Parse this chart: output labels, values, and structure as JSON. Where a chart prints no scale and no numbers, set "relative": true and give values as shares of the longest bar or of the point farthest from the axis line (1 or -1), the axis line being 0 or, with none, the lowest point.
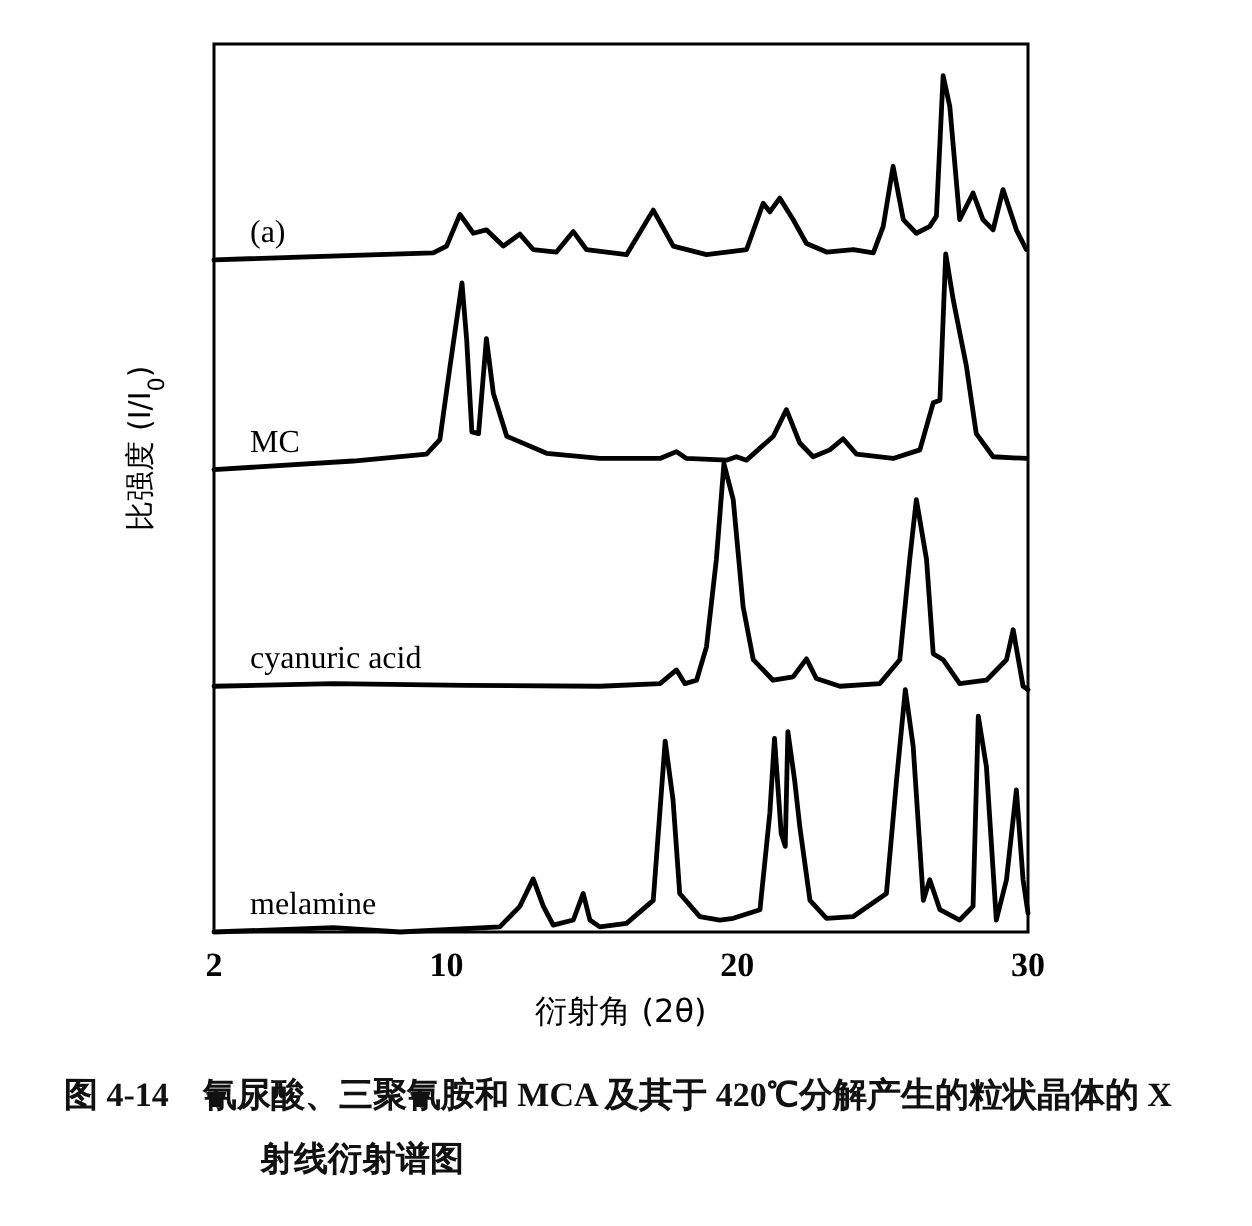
{
  "chart_data": {
    "type": "line",
    "relative": true,
    "xlabel": "衍射角 (2θ)",
    "ylabel": "比强度 (I/I$_{0}$)",
    "xlim": [
      2,
      30
    ],
    "xticks": [
      2,
      10,
      20,
      30
    ],
    "annotations": [
      "图 4-14　氰尿酸、三聚氰胺和 MCA 及其于 420℃分解产生的粒状晶体的 X 射线衍射谱图"
    ],
    "series": [
      {
        "name": "(a)",
        "color": "#000000",
        "x": [
          2,
          9.54,
          10.0,
          10.46,
          10.92,
          11.37,
          11.95,
          12.52,
          12.98,
          13.78,
          14.36,
          14.81,
          16.19,
          17.11,
          17.8,
          18.94,
          20.32,
          20.89,
          21.12,
          21.46,
          21.92,
          22.38,
          23.07,
          23.99,
          24.68,
          25.02,
          25.36,
          25.71,
          26.16,
          26.62,
          26.85,
          27.08,
          27.31,
          27.65,
          28.11,
          28.45,
          28.8,
          29.14,
          29.6,
          29.94
        ],
        "values": [
          0.785,
          0.793,
          0.801,
          0.838,
          0.816,
          0.82,
          0.801,
          0.815,
          0.797,
          0.794,
          0.818,
          0.797,
          0.791,
          0.843,
          0.801,
          0.791,
          0.797,
          0.851,
          0.841,
          0.857,
          0.832,
          0.804,
          0.794,
          0.797,
          0.793,
          0.824,
          0.894,
          0.832,
          0.816,
          0.824,
          0.836,
          1,
          0.964,
          0.832,
          0.863,
          0.832,
          0.82,
          0.867,
          0.82,
          0.797
        ]
      },
      {
        "name": "MC",
        "color": "#000000",
        "x": [
          2,
          6.79,
          9.31,
          9.77,
          10.12,
          10.53,
          10.69,
          10.87,
          11.1,
          11.37,
          11.61,
          12.07,
          13.44,
          15.27,
          17.34,
          17.91,
          18.25,
          19.63,
          19.97,
          20.32,
          21.24,
          21.69,
          22.15,
          22.61,
          23.18,
          23.64,
          24.1,
          25.36,
          26.28,
          26.74,
          26.97,
          27.17,
          27.43,
          27.88,
          28.22,
          28.8,
          29.94
        ],
        "values": [
          0.54,
          0.55,
          0.558,
          0.575,
          0.661,
          0.758,
          0.692,
          0.584,
          0.582,
          0.693,
          0.629,
          0.579,
          0.559,
          0.553,
          0.553,
          0.561,
          0.553,
          0.551,
          0.555,
          0.551,
          0.579,
          0.61,
          0.571,
          0.555,
          0.563,
          0.576,
          0.558,
          0.553,
          0.563,
          0.618,
          0.621,
          0.792,
          0.738,
          0.661,
          0.582,
          0.555,
          0.553
        ]
      },
      {
        "name": "cyanuric acid",
        "color": "#000000",
        "x": [
          2,
          6.11,
          10.69,
          15.27,
          17.34,
          17.91,
          18.2,
          18.6,
          18.94,
          19.28,
          19.54,
          19.86,
          20.2,
          20.55,
          21.23,
          21.92,
          22.38,
          22.72,
          23.53,
          24.9,
          25.59,
          25.93,
          26.16,
          26.51,
          26.74,
          27.08,
          27.65,
          28.57,
          29.26,
          29.49,
          29.83,
          30
        ],
        "values": [
          0.287,
          0.29,
          0.288,
          0.287,
          0.29,
          0.306,
          0.29,
          0.294,
          0.333,
          0.435,
          0.547,
          0.505,
          0.38,
          0.318,
          0.294,
          0.298,
          0.319,
          0.296,
          0.287,
          0.29,
          0.318,
          0.435,
          0.505,
          0.435,
          0.325,
          0.318,
          0.29,
          0.294,
          0.318,
          0.353,
          0.287,
          0.283
        ]
      },
      {
        "name": "melamine",
        "color": "#000000",
        "x": [
          2,
          6.11,
          8.4,
          11.83,
          12.52,
          12.98,
          13.33,
          13.67,
          14.36,
          14.7,
          14.93,
          15.27,
          16.19,
          17.11,
          17.52,
          17.79,
          18.02,
          18.71,
          19.4,
          19.86,
          20.78,
          21.12,
          21.28,
          21.51,
          21.65,
          21.74,
          21.97,
          22.15,
          22.5,
          23.07,
          23.99,
          25.13,
          25.48,
          25.78,
          26.05,
          26.4,
          26.62,
          26.97,
          27.65,
          28.11,
          28.29,
          28.57,
          28.91,
          29.26,
          29.6,
          29.83,
          30
        ],
        "values": [
          0.0,
          0.005,
          0.0,
          0.006,
          0.03,
          0.062,
          0.03,
          0.008,
          0.014,
          0.045,
          0.014,
          0.006,
          0.01,
          0.037,
          0.223,
          0.154,
          0.045,
          0.018,
          0.014,
          0.016,
          0.026,
          0.139,
          0.226,
          0.115,
          0.1,
          0.234,
          0.178,
          0.123,
          0.037,
          0.016,
          0.018,
          0.045,
          0.178,
          0.283,
          0.217,
          0.037,
          0.061,
          0.026,
          0.014,
          0.03,
          0.252,
          0.193,
          0.014,
          0.061,
          0.166,
          0.061,
          0.022
        ]
      }
    ]
  }
}
